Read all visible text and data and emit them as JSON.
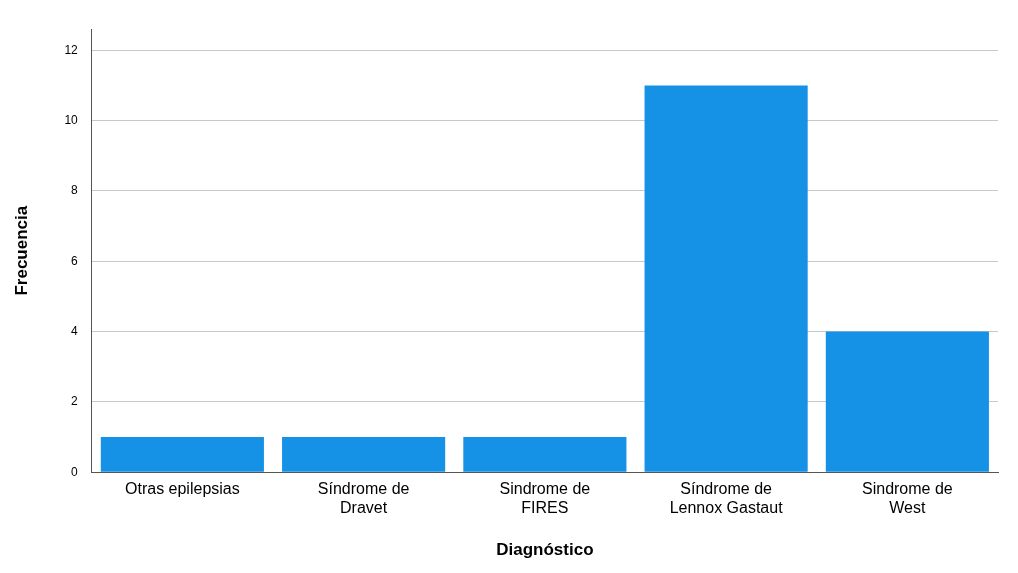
{
  "chart_data": {
    "type": "bar",
    "xlabel": "Diagnóstico",
    "ylabel": "Frecuencia",
    "categories": [
      "Otras epilepsias",
      "Síndrome de Dravet",
      "Sindrome de FIRES",
      "Síndrome de Lennox Gastaut",
      "Sindrome de West"
    ],
    "values": [
      1,
      1,
      1,
      11,
      4
    ],
    "color": "#1591e6",
    "ylim": [
      0,
      12.6
    ],
    "yticks": [
      0,
      2,
      4,
      6,
      8,
      10,
      12
    ],
    "grid": "y",
    "legend": false
  }
}
